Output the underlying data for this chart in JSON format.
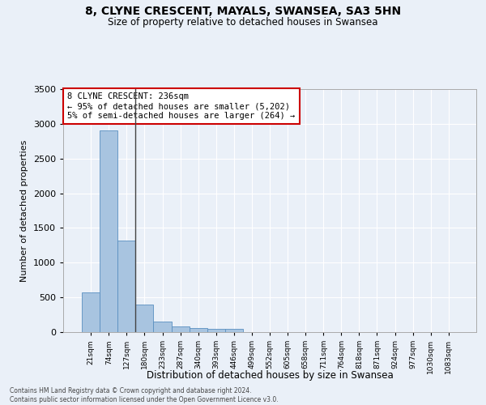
{
  "title": "8, CLYNE CRESCENT, MAYALS, SWANSEA, SA3 5HN",
  "subtitle": "Size of property relative to detached houses in Swansea",
  "xlabel": "Distribution of detached houses by size in Swansea",
  "ylabel": "Number of detached properties",
  "categories": [
    "21sqm",
    "74sqm",
    "127sqm",
    "180sqm",
    "233sqm",
    "287sqm",
    "340sqm",
    "393sqm",
    "446sqm",
    "499sqm",
    "552sqm",
    "605sqm",
    "658sqm",
    "711sqm",
    "764sqm",
    "818sqm",
    "871sqm",
    "924sqm",
    "977sqm",
    "1030sqm",
    "1083sqm"
  ],
  "values": [
    570,
    2910,
    1320,
    400,
    155,
    80,
    58,
    48,
    43,
    0,
    0,
    0,
    0,
    0,
    0,
    0,
    0,
    0,
    0,
    0,
    0
  ],
  "bar_color": "#a8c4e0",
  "bar_edge_color": "#5a8fc0",
  "background_color": "#eaf0f8",
  "grid_color": "#ffffff",
  "annotation_text": "8 CLYNE CRESCENT: 236sqm\n← 95% of detached houses are smaller (5,202)\n5% of semi-detached houses are larger (264) →",
  "annotation_box_color": "#ffffff",
  "annotation_box_edge": "#cc0000",
  "vline_x_index": 2.5,
  "ylim": [
    0,
    3500
  ],
  "yticks": [
    0,
    500,
    1000,
    1500,
    2000,
    2500,
    3000,
    3500
  ],
  "footer_line1": "Contains HM Land Registry data © Crown copyright and database right 2024.",
  "footer_line2": "Contains public sector information licensed under the Open Government Licence v3.0."
}
